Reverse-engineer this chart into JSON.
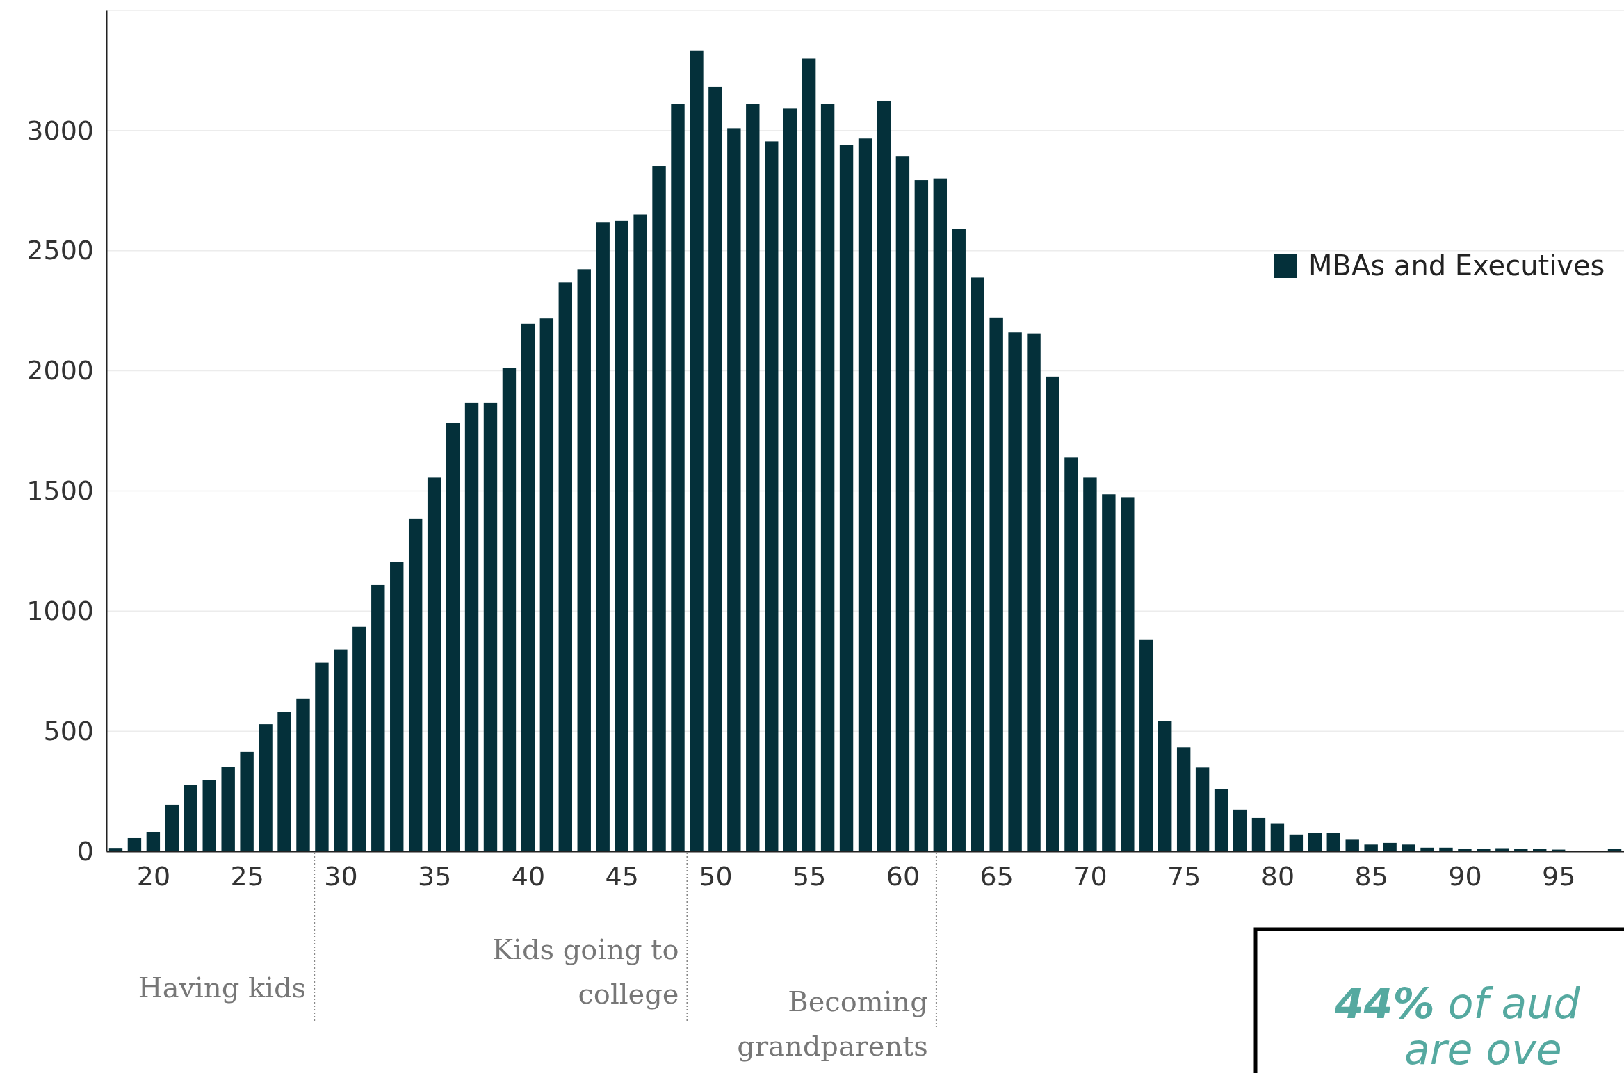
{
  "chart_data": {
    "type": "bar",
    "x": [
      18,
      19,
      20,
      21,
      22,
      23,
      24,
      25,
      26,
      27,
      28,
      29,
      30,
      31,
      32,
      33,
      34,
      35,
      36,
      37,
      38,
      39,
      40,
      41,
      42,
      43,
      44,
      45,
      46,
      47,
      48,
      49,
      50,
      51,
      52,
      53,
      54,
      55,
      56,
      57,
      58,
      59,
      60,
      61,
      62,
      63,
      64,
      65,
      66,
      67,
      68,
      69,
      70,
      71,
      72,
      73,
      74,
      75,
      76,
      77,
      78,
      79,
      80,
      81,
      82,
      83,
      84,
      85,
      86,
      87,
      88,
      89,
      90,
      91,
      92,
      93,
      94,
      95,
      96,
      97,
      98
    ],
    "series": [
      {
        "name": "MBAs and Executives",
        "color": "#04303a",
        "values": [
          14,
          55,
          81,
          194,
          275,
          297,
          352,
          414,
          529,
          579,
          634,
          785,
          840,
          935,
          1108,
          1206,
          1383,
          1555,
          1782,
          1866,
          1866,
          2012,
          2196,
          2218,
          2368,
          2423,
          2617,
          2624,
          2651,
          2852,
          3112,
          3333,
          3182,
          3010,
          3112,
          2955,
          3091,
          3299,
          3112,
          2940,
          2967,
          3124,
          2892,
          2794,
          2801,
          2589,
          2388,
          2222,
          2160,
          2156,
          1976,
          1639,
          1555,
          1486,
          1474,
          880,
          543,
          433,
          349,
          258,
          174,
          139,
          117,
          70,
          76,
          76,
          48,
          28,
          35,
          28,
          15,
          15,
          9,
          9,
          13,
          9,
          9,
          7,
          0,
          0,
          9
        ]
      }
    ],
    "xlim": [
      17.5,
      98.5
    ],
    "xticks": [
      20,
      25,
      30,
      35,
      40,
      45,
      50,
      55,
      60,
      65,
      70,
      75,
      80,
      85,
      90,
      95
    ],
    "ylim": [
      0,
      3500
    ],
    "yticks": [
      0,
      500,
      1000,
      1500,
      2000,
      2500,
      3000,
      {
        "value": 3500,
        "label": null
      }
    ],
    "grid": "y",
    "legend": "right",
    "ref_lines": [
      {
        "axis": "x",
        "value": 28.6,
        "label": "Having kids",
        "line_style": "dotted",
        "color": "#888888"
      },
      {
        "axis": "x",
        "value": 48.5,
        "label": "Kids going to college",
        "line_style": "dotted",
        "color": "#888888"
      },
      {
        "axis": "x",
        "value": 61.8,
        "label": "Becoming grandparents",
        "line_style": "dotted",
        "color": "#888888"
      }
    ],
    "annotations": [
      "44% of aud",
      "are ove"
    ]
  }
}
